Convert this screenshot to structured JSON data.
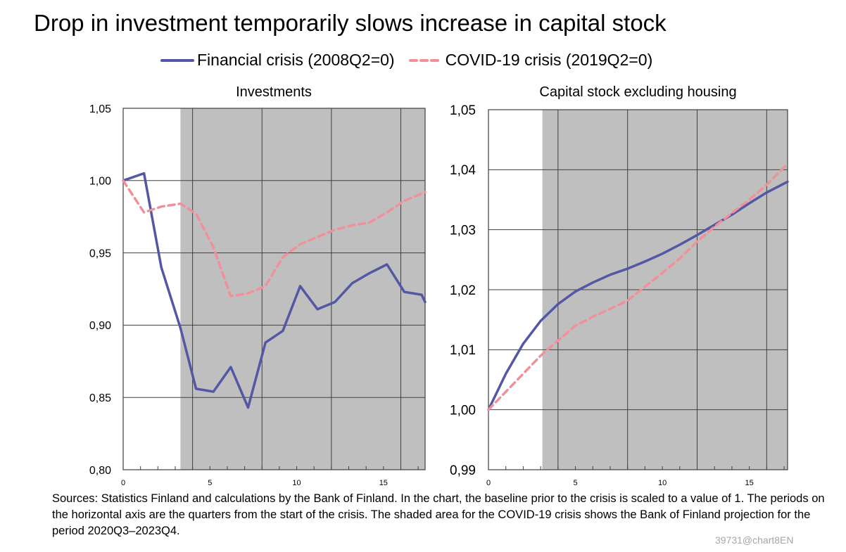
{
  "title": "Drop in investment temporarily slows increase in capital stock",
  "legend": {
    "financial": "Financial crisis (2008Q2=0)",
    "covid": "COVID-19 crisis (2019Q2=0)"
  },
  "colors": {
    "financial": "#5457a3",
    "covid": "#f0919a",
    "shade": "#bfbfbf",
    "grid": "#404040"
  },
  "chart_data": [
    {
      "type": "line",
      "title": "Investments",
      "xlim": [
        0,
        17.4
      ],
      "ylim": [
        0.8,
        1.05
      ],
      "x_ticks": [
        0,
        5,
        10,
        15
      ],
      "x_tick_labels": [
        "0",
        "5",
        "10",
        "15"
      ],
      "y_ticks": [
        0.8,
        0.85,
        0.9,
        0.95,
        1.0,
        1.05
      ],
      "y_tick_labels": [
        "0,80",
        "0,85",
        "0,90",
        "0,95",
        "1,00",
        "1,05"
      ],
      "shaded_from": 3.3,
      "series": [
        {
          "name": "Financial crisis (2008Q2=0)",
          "x": [
            0,
            1.2,
            2.2,
            3.3,
            4.2,
            5.2,
            6.2,
            7.2,
            8.2,
            9.2,
            10.2,
            11.2,
            12.2,
            13.2,
            14.2,
            15.2,
            16.2,
            17.2,
            17.4
          ],
          "values": [
            1.0,
            1.005,
            0.94,
            0.898,
            0.856,
            0.854,
            0.871,
            0.843,
            0.888,
            0.896,
            0.927,
            0.911,
            0.916,
            0.929,
            0.936,
            0.942,
            0.923,
            0.921,
            0.916
          ]
        },
        {
          "name": "COVID-19 crisis (2019Q2=0)",
          "x": [
            0,
            1.2,
            2.2,
            3.3,
            4.2,
            5.2,
            6.2,
            7.2,
            8.2,
            9.2,
            10.2,
            11.2,
            12.2,
            13.2,
            14.2,
            15.2,
            16.2,
            17.4
          ],
          "values": [
            1.0,
            0.978,
            0.982,
            0.984,
            0.977,
            0.954,
            0.92,
            0.922,
            0.927,
            0.947,
            0.956,
            0.961,
            0.966,
            0.969,
            0.971,
            0.978,
            0.986,
            0.992
          ]
        }
      ]
    },
    {
      "type": "line",
      "title": "Capital stock excluding housing",
      "xlim": [
        0,
        17.2
      ],
      "ylim": [
        0.99,
        1.05
      ],
      "x_ticks": [
        0,
        5,
        10,
        15
      ],
      "x_tick_labels": [
        "0",
        "5",
        "10",
        "15"
      ],
      "y_ticks": [
        0.99,
        1.0,
        1.01,
        1.02,
        1.03,
        1.04,
        1.05
      ],
      "y_tick_labels": [
        "0,99",
        "1,00",
        "1,01",
        "1,02",
        "1,03",
        "1,04",
        "1,05"
      ],
      "shaded_from": 3.1,
      "series": [
        {
          "name": "Financial crisis (2008Q2=0)",
          "x": [
            0,
            1,
            2,
            3,
            4,
            5,
            6,
            7,
            8,
            9,
            10,
            11,
            12,
            13,
            14,
            15,
            16,
            17.2
          ],
          "values": [
            1.0,
            1.006,
            1.011,
            1.0148,
            1.0176,
            1.0197,
            1.0212,
            1.0225,
            1.0235,
            1.0247,
            1.026,
            1.0275,
            1.0291,
            1.0308,
            1.0325,
            1.0344,
            1.0362,
            1.038
          ]
        },
        {
          "name": "COVID-19 crisis (2019Q2=0)",
          "x": [
            0,
            1,
            2,
            3,
            4,
            5,
            6,
            7,
            8,
            9,
            10,
            11,
            12,
            13,
            14,
            15,
            16,
            17.2
          ],
          "values": [
            1.0,
            1.003,
            1.006,
            1.009,
            1.0115,
            1.014,
            1.0155,
            1.0168,
            1.0182,
            1.0205,
            1.0228,
            1.0252,
            1.028,
            1.0305,
            1.0328,
            1.035,
            1.0375,
            1.041
          ]
        }
      ]
    }
  ],
  "sources": "Sources: Statistics Finland and calculations by the Bank of Finland. In the chart, the baseline prior to the crisis is scaled to a value of 1. The periods on the horizontal axis are the quarters from the start of the crisis. The shaded area for the COVID-19 crisis shows the Bank of Finland projection for the period 2020Q3–2023Q4.",
  "chart_id": "39731@chart8EN"
}
